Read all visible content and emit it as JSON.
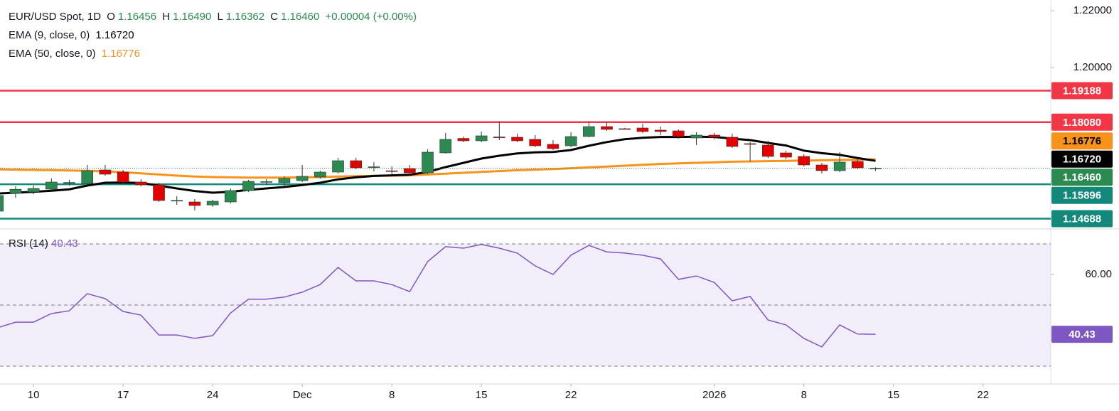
{
  "chart_data": [
    {
      "type": "candlestick",
      "title": "EUR/USD Spot, 1D",
      "ohlc": [
        {
          "key": "O",
          "value": "1.16456"
        },
        {
          "key": "H",
          "value": "1.16490"
        },
        {
          "key": "L",
          "value": "1.16362"
        },
        {
          "key": "C",
          "value": "1.16460"
        }
      ],
      "change": "+0.00004 (+0.00%)",
      "up_color": "#2b8a50",
      "down_color": "#e50000",
      "wick_color": "#333333",
      "open": [
        1.1495,
        1.15575,
        1.15625,
        1.15725,
        1.1595,
        1.15925,
        1.164,
        1.16325,
        1.15975,
        1.15875,
        1.1532,
        1.15275,
        1.1517,
        1.15275,
        1.15675,
        1.1597,
        1.1595,
        1.16025,
        1.1615,
        1.16325,
        1.16725,
        1.165,
        1.1637,
        1.1645,
        1.163,
        1.17,
        1.1751,
        1.17425,
        1.1756,
        1.1755,
        1.17475,
        1.173,
        1.1725,
        1.17575,
        1.17925,
        1.1785,
        1.17875,
        1.178,
        1.17775,
        1.17525,
        1.17625,
        1.1755,
        1.17325,
        1.17275,
        1.17,
        1.16875,
        1.16575,
        1.16375,
        1.167,
        1.16456
      ],
      "high": [
        1.15575,
        1.15825,
        1.1585,
        1.161,
        1.1605,
        1.16575,
        1.16575,
        1.164,
        1.16075,
        1.1595,
        1.15475,
        1.15375,
        1.1535,
        1.1575,
        1.1605,
        1.16075,
        1.16175,
        1.16575,
        1.16375,
        1.16825,
        1.16825,
        1.16675,
        1.16525,
        1.16575,
        1.17125,
        1.177,
        1.17575,
        1.1775,
        1.181,
        1.17675,
        1.17625,
        1.1745,
        1.17725,
        1.181,
        1.18075,
        1.17875,
        1.18025,
        1.17925,
        1.17825,
        1.17725,
        1.177,
        1.17675,
        1.17375,
        1.17425,
        1.17075,
        1.1695,
        1.1665,
        1.17025,
        1.16775,
        1.1649
      ],
      "low": [
        1.14875,
        1.15425,
        1.1555,
        1.15675,
        1.1585,
        1.15875,
        1.162,
        1.159,
        1.15825,
        1.15275,
        1.15175,
        1.14975,
        1.151,
        1.15225,
        1.15625,
        1.15875,
        1.15825,
        1.15975,
        1.161,
        1.16275,
        1.16425,
        1.1635,
        1.1625,
        1.16225,
        1.1625,
        1.16975,
        1.17375,
        1.17375,
        1.1745,
        1.17375,
        1.172,
        1.171,
        1.172,
        1.1755,
        1.17775,
        1.17825,
        1.177,
        1.17625,
        1.175,
        1.17275,
        1.17475,
        1.17175,
        1.167,
        1.16825,
        1.16775,
        1.16525,
        1.16275,
        1.16325,
        1.16425,
        1.16362
      ],
      "close": [
        1.155,
        1.1572,
        1.1575,
        1.15975,
        1.1596,
        1.16375,
        1.1625,
        1.15975,
        1.15875,
        1.15325,
        1.1533,
        1.1515,
        1.153,
        1.15675,
        1.16,
        1.1599,
        1.161,
        1.16175,
        1.16325,
        1.16725,
        1.16475,
        1.1651,
        1.1636,
        1.163,
        1.17025,
        1.17475,
        1.17425,
        1.176,
        1.1755,
        1.17425,
        1.1725,
        1.1715,
        1.17575,
        1.17925,
        1.17825,
        1.1784,
        1.1775,
        1.1775,
        1.17575,
        1.17625,
        1.1755,
        1.17225,
        1.173,
        1.16875,
        1.1685,
        1.16575,
        1.16375,
        1.16675,
        1.16475,
        1.1646
      ],
      "series": [
        {
          "name": "EMA (9, close, 0)",
          "color": "#000000",
          "last_label": "1.16720",
          "values": [
            1.1557,
            1.156,
            1.1563,
            1.1567,
            1.1572,
            1.1585,
            1.1595,
            1.1596,
            1.1594,
            1.1585,
            1.1575,
            1.1566,
            1.156,
            1.1563,
            1.157,
            1.1575,
            1.158,
            1.1587,
            1.1595,
            1.1607,
            1.1614,
            1.1619,
            1.1621,
            1.1623,
            1.1633,
            1.165,
            1.1665,
            1.168,
            1.169,
            1.1698,
            1.1702,
            1.1703,
            1.171,
            1.1725,
            1.1738,
            1.1748,
            1.1753,
            1.1756,
            1.1756,
            1.1757,
            1.1756,
            1.175,
            1.1745,
            1.1735,
            1.1726,
            1.1708,
            1.1699,
            1.1693,
            1.1682,
            1.1672
          ]
        },
        {
          "name": "EMA (50, close, 0)",
          "color": "#f7931a",
          "last_label": "1.16776",
          "values": [
            1.1642,
            1.1641,
            1.164,
            1.1639,
            1.1638,
            1.1637,
            1.1635,
            1.1632,
            1.1628,
            1.1624,
            1.162,
            1.1617,
            1.1615,
            1.1614,
            1.1613,
            1.1613,
            1.1613,
            1.1614,
            1.1615,
            1.1617,
            1.1618,
            1.1619,
            1.162,
            1.1621,
            1.1624,
            1.1627,
            1.163,
            1.1633,
            1.1636,
            1.1639,
            1.1641,
            1.1643,
            1.1646,
            1.1649,
            1.1652,
            1.1655,
            1.1658,
            1.1661,
            1.1663,
            1.1665,
            1.1667,
            1.1669,
            1.167,
            1.1671,
            1.1672,
            1.1673,
            1.1674,
            1.1675,
            1.1676,
            1.16776
          ]
        }
      ],
      "levels": [
        {
          "value": 1.19188,
          "color": "#f23645"
        },
        {
          "value": 1.1808,
          "label": "1.18080",
          "color": "#f23645"
        },
        {
          "value": 1.15896,
          "color": "#12897a"
        },
        {
          "value": 1.14688,
          "color": "#12897a"
        }
      ],
      "ylim": [
        1.14325,
        1.22375
      ],
      "yticks": [
        {
          "value": 1.22,
          "label": "1.22000"
        },
        {
          "value": 1.2,
          "label": "1.20000"
        }
      ],
      "xlim": [
        0.13,
        58.78
      ],
      "xticks": [
        {
          "value": 2,
          "label": "10"
        },
        {
          "value": 7,
          "label": "17"
        },
        {
          "value": 12,
          "label": "24"
        },
        {
          "value": 17,
          "label": "Dec"
        },
        {
          "value": 22,
          "label": "8"
        },
        {
          "value": 27,
          "label": "15"
        },
        {
          "value": 32,
          "label": "22"
        },
        {
          "value": 40,
          "label": "2026"
        },
        {
          "value": 45,
          "label": "8"
        },
        {
          "value": 50,
          "label": "15"
        },
        {
          "value": 55,
          "label": "22"
        }
      ]
    },
    {
      "type": "line",
      "name": "RSI (14)",
      "color": "#7e57c2",
      "last_label": "40.43",
      "values": [
        42.6,
        44.4,
        44.4,
        47.2,
        48.1,
        53.7,
        52.1,
        47.9,
        46.7,
        40.2,
        40.2,
        39.1,
        40,
        47.4,
        51.9,
        51.9,
        52.6,
        54.2,
        56.7,
        62.3,
        57.9,
        57.9,
        56.7,
        54.4,
        64.2,
        69.1,
        68.6,
        69.8,
        68.6,
        67,
        62.8,
        60,
        66.3,
        69.5,
        67.4,
        67,
        66.3,
        65.1,
        58.4,
        59.5,
        57.4,
        51.4,
        52.8,
        45.1,
        43.5,
        39.1,
        36.3,
        43.5,
        40.5,
        40.43
      ],
      "bands": [
        70,
        50,
        30
      ],
      "ylim": [
        24.18,
        74.88
      ],
      "yticks": [
        {
          "value": 60,
          "label": "60.00"
        }
      ]
    }
  ]
}
